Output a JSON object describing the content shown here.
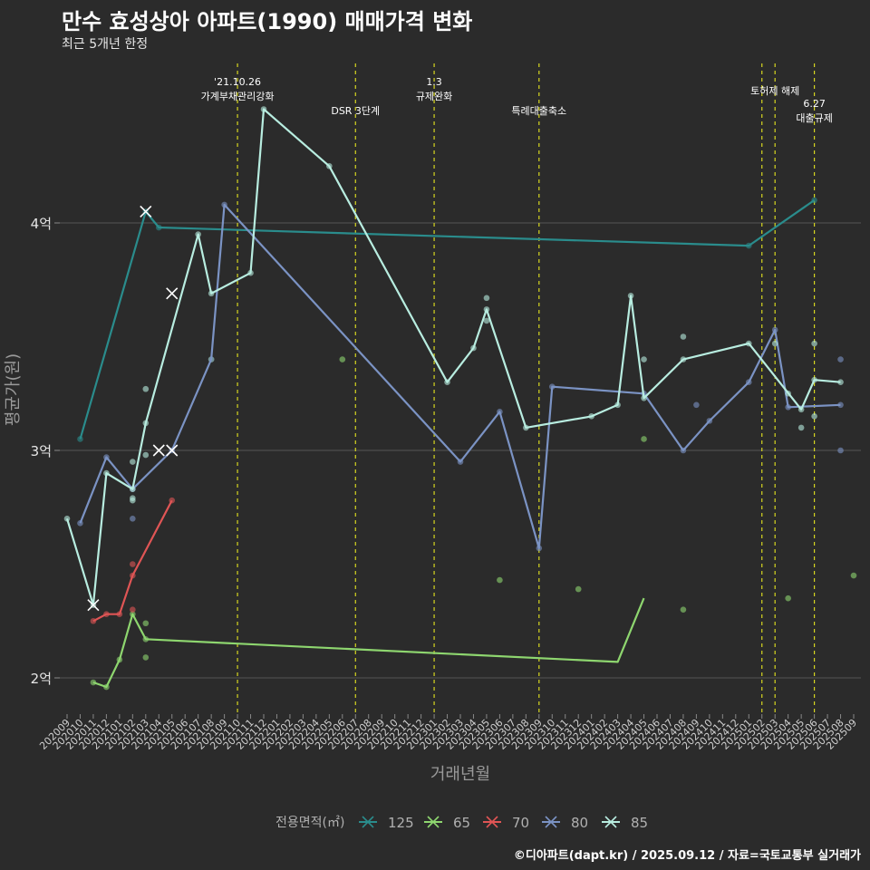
{
  "title": "만수 효성상아 아파트(1990) 매매가격 변화",
  "subtitle": "최근 5개년 한정",
  "caption": "©디아파트(dapt.kr) / 2025.09.12 / 자료=국토교통부 실거래가",
  "colors": {
    "background": "#2b2b2b",
    "grid": "#555555",
    "event_line": "#d7d720"
  },
  "chart_data": {
    "type": "line",
    "xlabel": "거래년월",
    "ylabel": "평균가(원)",
    "ylim": [
      1.85,
      4.5
    ],
    "y_ticks": [
      {
        "value": 2,
        "label": "2억"
      },
      {
        "value": 3,
        "label": "3억"
      },
      {
        "value": 4,
        "label": "4억"
      }
    ],
    "categories": [
      "202009",
      "202010",
      "202011",
      "202012",
      "202101",
      "202102",
      "202103",
      "202104",
      "202105",
      "202106",
      "202107",
      "202108",
      "202109",
      "202110",
      "202111",
      "202112",
      "202201",
      "202202",
      "202203",
      "202204",
      "202205",
      "202206",
      "202207",
      "202208",
      "202209",
      "202210",
      "202211",
      "202212",
      "202301",
      "202302",
      "202303",
      "202304",
      "202305",
      "202306",
      "202307",
      "202308",
      "202309",
      "202310",
      "202311",
      "202312",
      "202401",
      "202402",
      "202403",
      "202404",
      "202405",
      "202406",
      "202407",
      "202408",
      "202409",
      "202410",
      "202411",
      "202412",
      "202501",
      "202502",
      "202503",
      "202504",
      "202505",
      "202506",
      "202507",
      "202508",
      "202509"
    ],
    "legend": {
      "title": "전용면적(㎡)",
      "position": "bottom"
    },
    "events": [
      {
        "x": "202110",
        "lines": [
          "'21.10.26",
          "가계부채관리강화"
        ],
        "row": 0
      },
      {
        "x": "202207",
        "lines": [
          "DSR 3단계"
        ],
        "row": 2
      },
      {
        "x": "202301",
        "lines": [
          "1.3",
          "규제완화"
        ],
        "row": 0
      },
      {
        "x": "202309",
        "lines": [
          "특례대출축소"
        ],
        "row": 2
      },
      {
        "x": "202502",
        "lines": [],
        "row": 0
      },
      {
        "x": "202503",
        "lines": [
          "토허제 해제"
        ],
        "row": 1
      },
      {
        "x": "202506",
        "lines": [
          "6.27",
          "대출규제"
        ],
        "row": 2
      }
    ],
    "series": [
      {
        "name": "125",
        "color": "#2a8c8c",
        "line": [
          [
            "202010",
            3.05
          ],
          [
            "202103",
            4.05
          ],
          [
            "202104",
            3.98
          ],
          [
            "202501",
            3.9
          ],
          [
            "202506",
            4.1
          ]
        ],
        "points": [
          [
            "202010",
            3.05
          ],
          [
            "202103",
            4.05
          ],
          [
            "202104",
            3.98
          ],
          [
            "202501",
            3.9
          ],
          [
            "202506",
            4.1
          ]
        ],
        "crosses": [
          [
            "202103",
            4.05
          ]
        ]
      },
      {
        "name": "65",
        "color": "#8ed66f",
        "line": [
          [
            "202011",
            1.98
          ],
          [
            "202012",
            1.96
          ],
          [
            "202101",
            2.08
          ],
          [
            "202102",
            2.28
          ],
          [
            "202103",
            2.17
          ],
          [
            "202403",
            2.07
          ],
          [
            "202405",
            2.35
          ]
        ],
        "points": [
          [
            "202011",
            1.98
          ],
          [
            "202012",
            1.96
          ],
          [
            "202101",
            2.08
          ],
          [
            "202102",
            2.28
          ],
          [
            "202103",
            2.17
          ],
          [
            "202103",
            2.24
          ],
          [
            "202103",
            2.09
          ],
          [
            "202108",
            3.4
          ],
          [
            "202206",
            3.4
          ],
          [
            "202306",
            2.43
          ],
          [
            "202312",
            2.39
          ],
          [
            "202405",
            3.05
          ],
          [
            "202408",
            2.3
          ],
          [
            "202504",
            2.35
          ],
          [
            "202509",
            2.45
          ]
        ],
        "crosses": []
      },
      {
        "name": "70",
        "color": "#e05555",
        "line": [
          [
            "202011",
            2.25
          ],
          [
            "202012",
            2.28
          ],
          [
            "202101",
            2.28
          ],
          [
            "202102",
            2.45
          ],
          [
            "202105",
            2.78
          ]
        ],
        "points": [
          [
            "202011",
            2.25
          ],
          [
            "202012",
            2.28
          ],
          [
            "202101",
            2.28
          ],
          [
            "202102",
            2.45
          ],
          [
            "202102",
            2.5
          ],
          [
            "202102",
            2.3
          ],
          [
            "202105",
            2.78
          ]
        ],
        "crosses": []
      },
      {
        "name": "80",
        "color": "#7b93c4",
        "line": [
          [
            "202010",
            2.68
          ],
          [
            "202012",
            2.97
          ],
          [
            "202102",
            2.83
          ],
          [
            "202105",
            3.0
          ],
          [
            "202108",
            3.4
          ],
          [
            "202109",
            4.08
          ],
          [
            "202303",
            2.95
          ],
          [
            "202306",
            3.17
          ],
          [
            "202309",
            2.57
          ],
          [
            "202310",
            3.28
          ],
          [
            "202405",
            3.25
          ],
          [
            "202408",
            3.0
          ],
          [
            "202410",
            3.13
          ],
          [
            "202501",
            3.3
          ],
          [
            "202503",
            3.53
          ],
          [
            "202504",
            3.19
          ],
          [
            "202508",
            3.2
          ]
        ],
        "points": [
          [
            "202010",
            2.68
          ],
          [
            "202012",
            2.97
          ],
          [
            "202102",
            2.83
          ],
          [
            "202102",
            2.7
          ],
          [
            "202105",
            3.0
          ],
          [
            "202108",
            3.4
          ],
          [
            "202109",
            4.08
          ],
          [
            "202303",
            2.95
          ],
          [
            "202306",
            3.17
          ],
          [
            "202309",
            2.57
          ],
          [
            "202310",
            3.28
          ],
          [
            "202405",
            3.25
          ],
          [
            "202408",
            3.0
          ],
          [
            "202409",
            3.2
          ],
          [
            "202410",
            3.13
          ],
          [
            "202501",
            3.3
          ],
          [
            "202503",
            3.53
          ],
          [
            "202504",
            3.19
          ],
          [
            "202508",
            3.4
          ],
          [
            "202508",
            3.2
          ],
          [
            "202508",
            3.0
          ]
        ],
        "crosses": [
          [
            "202104",
            3.0
          ],
          [
            "202105",
            3.0
          ]
        ]
      },
      {
        "name": "85",
        "color": "#b8ede0",
        "line": [
          [
            "202009",
            2.7
          ],
          [
            "202011",
            2.32
          ],
          [
            "202012",
            2.9
          ],
          [
            "202102",
            2.83
          ],
          [
            "202103",
            3.12
          ],
          [
            "202107",
            3.95
          ],
          [
            "202108",
            3.69
          ],
          [
            "202111",
            3.78
          ],
          [
            "202112",
            4.5
          ],
          [
            "202205",
            4.25
          ],
          [
            "202302",
            3.3
          ],
          [
            "202304",
            3.45
          ],
          [
            "202305",
            3.62
          ],
          [
            "202308",
            3.1
          ],
          [
            "202401",
            3.15
          ],
          [
            "202403",
            3.2
          ],
          [
            "202404",
            3.68
          ],
          [
            "202405",
            3.23
          ],
          [
            "202408",
            3.4
          ],
          [
            "202501",
            3.47
          ],
          [
            "202505",
            3.18
          ],
          [
            "202506",
            3.31
          ],
          [
            "202508",
            3.3
          ]
        ],
        "points": [
          [
            "202009",
            2.7
          ],
          [
            "202011",
            2.32
          ],
          [
            "202012",
            2.9
          ],
          [
            "202102",
            2.83
          ],
          [
            "202102",
            2.95
          ],
          [
            "202102",
            2.78
          ],
          [
            "202102",
            2.79
          ],
          [
            "202103",
            3.12
          ],
          [
            "202103",
            2.98
          ],
          [
            "202103",
            3.27
          ],
          [
            "202107",
            3.95
          ],
          [
            "202108",
            3.69
          ],
          [
            "202111",
            3.78
          ],
          [
            "202112",
            4.5
          ],
          [
            "202205",
            4.25
          ],
          [
            "202302",
            3.3
          ],
          [
            "202304",
            3.45
          ],
          [
            "202305",
            3.62
          ],
          [
            "202305",
            3.67
          ],
          [
            "202305",
            3.57
          ],
          [
            "202308",
            3.1
          ],
          [
            "202401",
            3.15
          ],
          [
            "202403",
            3.2
          ],
          [
            "202404",
            3.68
          ],
          [
            "202405",
            3.23
          ],
          [
            "202405",
            3.4
          ],
          [
            "202408",
            3.4
          ],
          [
            "202408",
            3.5
          ],
          [
            "202501",
            3.47
          ],
          [
            "202503",
            3.47
          ],
          [
            "202504",
            3.25
          ],
          [
            "202505",
            3.18
          ],
          [
            "202505",
            3.1
          ],
          [
            "202506",
            3.31
          ],
          [
            "202506",
            3.47
          ],
          [
            "202506",
            3.15
          ],
          [
            "202508",
            3.3
          ]
        ],
        "crosses": [
          [
            "202011",
            2.32
          ],
          [
            "202105",
            3.69
          ]
        ]
      }
    ]
  }
}
